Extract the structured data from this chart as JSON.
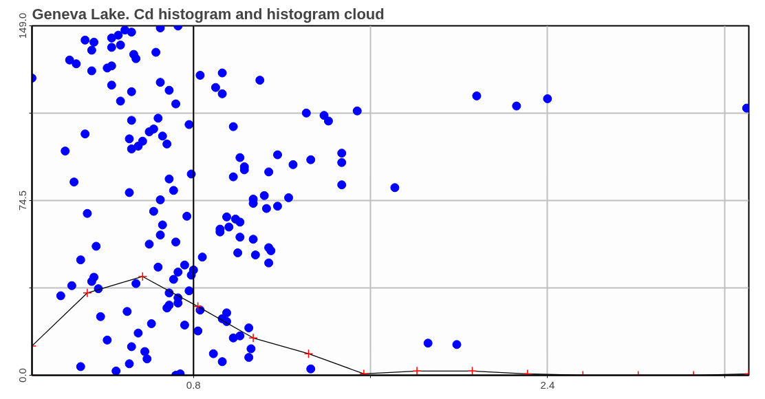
{
  "chart_data": {
    "type": "scatter",
    "title": "Geneva Lake.  Cd  histogram and histogram cloud",
    "xlim": [
      0.07,
      3.31
    ],
    "ylim": [
      0,
      149
    ],
    "xticks": [
      0.8,
      {
        "value": 1.6,
        "label": null
      },
      2.4,
      {
        "value": 3.2,
        "label": null
      }
    ],
    "yticks": [
      {
        "value": 0,
        "label": "0.0"
      },
      {
        "value": 37.25,
        "label": null
      },
      74.5,
      {
        "value": 111.75,
        "label": null
      },
      {
        "value": 149,
        "label": "149.0"
      }
    ],
    "grid": true,
    "ref_lines": [
      {
        "axis": "x",
        "value": 0.8,
        "color": "#000000"
      }
    ],
    "series": [
      {
        "type": "scatter",
        "color": "#0000ff",
        "marker": "circle",
        "x": [
          0.07,
          0.31,
          0.35,
          0.34,
          0.24,
          0.27,
          0.34,
          0.43,
          0.46,
          0.49,
          0.52,
          0.65,
          0.73,
          0.47,
          0.43,
          0.53,
          0.54,
          0.63,
          0.43,
          0.41,
          0.43,
          0.52,
          0.65,
          0.69,
          0.72,
          0.47,
          0.83,
          0.52,
          0.64,
          0.78,
          0.31,
          0.6,
          0.62,
          0.66,
          0.68,
          0.51,
          0.57,
          0.55,
          0.52,
          0.22,
          0.26,
          0.79,
          0.69,
          0.71,
          0.51,
          0.65,
          0.32,
          0.62,
          0.77,
          0.66,
          0.65,
          0.6,
          0.72,
          0.36,
          0.29,
          0.64,
          0.84,
          0.76,
          0.73,
          0.8,
          0.79,
          0.71,
          0.35,
          0.34,
          0.25,
          0.37,
          0.54,
          0.2,
          0.78,
          0.69,
          0.73,
          0.73,
          0.69,
          0.68,
          0.5,
          0.83,
          0.38,
          0.61,
          0.76,
          0.82,
          0.55,
          0.41,
          0.52,
          0.58,
          0.59,
          0.29,
          0.51,
          0.45,
          0.74,
          0.72,
          0.93,
          0.9,
          0.93,
          1.1,
          0.98,
          1.01,
          1.03,
          1.03,
          0.98,
          1.18,
          1.14,
          1.25,
          1.31,
          1.39,
          1.41,
          1.54,
          1.33,
          1.47,
          1.47,
          1.47,
          1.71,
          1.12,
          1.07,
          1.23,
          1.07,
          1.13,
          1.18,
          0.95,
          0.99,
          1.01,
          0.92,
          0.92,
          0.96,
          1.01,
          1.07,
          1.0,
          1.08,
          1.14,
          1.15,
          1.14,
          0.95,
          0.93,
          0.95,
          1.05,
          0.98,
          1.01,
          1.06,
          1.05,
          0.89,
          0.93,
          1.33,
          2.08,
          2.26,
          2.4,
          3.3,
          1.86,
          1.99
        ],
        "values": [
          126.7,
          142.9,
          142.0,
          138.6,
          134.4,
          132.8,
          129.8,
          143.8,
          145.0,
          147.2,
          146.3,
          148.1,
          148.9,
          140.8,
          139.8,
          136.8,
          135.0,
          137.7,
          131.9,
          131.0,
          123.7,
          120.9,
          124.9,
          121.5,
          115.7,
          116.9,
          127.9,
          108.7,
          109.6,
          106.9,
          102.9,
          103.8,
          105.0,
          102.0,
          98.6,
          100.8,
          99.8,
          97.7,
          96.5,
          95.6,
          82.4,
          85.8,
          83.7,
          78.8,
          77.9,
          74.8,
          69.0,
          69.9,
          67.8,
          64.1,
          59.8,
          55.9,
          56.8,
          55.0,
          49.2,
          46.1,
          50.4,
          47.0,
          44.0,
          44.9,
          42.7,
          40.9,
          41.8,
          40.0,
          38.2,
          36.9,
          39.1,
          33.9,
          36.0,
          35.1,
          33.0,
          30.8,
          29.9,
          28.7,
          27.2,
          27.8,
          25.0,
          22.0,
          21.4,
          18.9,
          18.0,
          15.0,
          12.2,
          10.1,
          7.0,
          3.7,
          4.9,
          1.8,
          0.6,
          0.0,
          128.9,
          122.7,
          120.0,
          125.8,
          106.0,
          92.8,
          88.9,
          87.6,
          84.6,
          94.0,
          86.7,
          89.8,
          111.8,
          110.8,
          108.4,
          112.7,
          91.9,
          94.7,
          90.7,
          81.2,
          80.0,
          76.6,
          75.1,
          75.7,
          73.3,
          71.1,
          72.1,
          67.5,
          66.6,
          65.3,
          62.3,
          61.1,
          63.2,
          58.9,
          58.0,
          52.2,
          51.3,
          54.4,
          53.1,
          47.9,
          26.6,
          24.1,
          22.9,
          20.2,
          15.9,
          16.8,
          11.3,
          7.6,
          9.2,
          5.8,
          2.7,
          119.1,
          114.8,
          117.9,
          113.9,
          13.7,
          13.1
        ]
      },
      {
        "type": "line",
        "color": "#000000",
        "marker": "none",
        "x": [
          0.07,
          0.07,
          0.32,
          0.57,
          0.82,
          1.07,
          1.32,
          1.57,
          1.81,
          2.06,
          2.31,
          2.56,
          2.81,
          3.06,
          3.31
        ],
        "values": [
          0,
          12.5,
          35.1,
          42.1,
          29.3,
          15.9,
          9.2,
          0.6,
          1.8,
          1.8,
          0.6,
          0,
          0,
          0,
          0.6
        ]
      },
      {
        "type": "scatter",
        "color": "#ff0000",
        "marker": "cross",
        "x": [
          0.07,
          0.07,
          0.32,
          0.57,
          0.82,
          1.07,
          1.32,
          1.57,
          1.81,
          2.06,
          2.31,
          2.56,
          2.81,
          3.06,
          3.31
        ],
        "values": [
          0,
          12.5,
          35.1,
          42.1,
          29.3,
          15.9,
          9.2,
          0.6,
          1.8,
          1.8,
          0.6,
          0,
          0,
          0,
          0.6
        ]
      }
    ]
  }
}
